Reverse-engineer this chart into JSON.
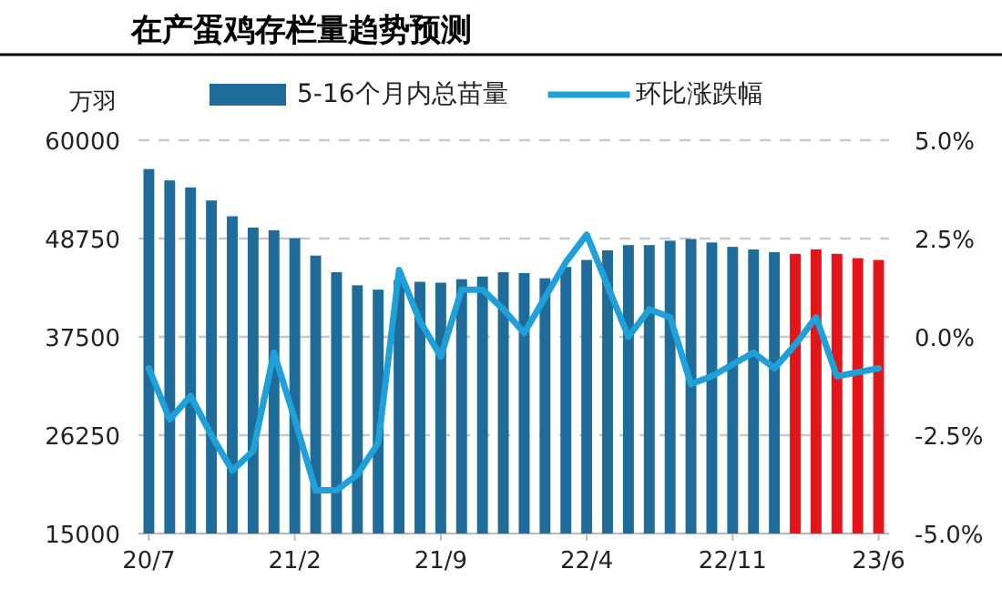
{
  "chart_data": {
    "type": "bar",
    "title": "在产蛋鸡存栏量趋势预测",
    "ylabel": "万羽",
    "categories": [
      "20/7",
      null,
      null,
      null,
      null,
      null,
      null,
      "21/2",
      null,
      null,
      null,
      null,
      null,
      null,
      "21/9",
      null,
      null,
      null,
      null,
      null,
      null,
      "22/4",
      null,
      null,
      null,
      null,
      null,
      null,
      "22/11",
      null,
      null,
      null,
      null,
      null,
      null,
      "23/6"
    ],
    "ylim": [
      15000,
      60000
    ],
    "yticks": [
      15000,
      26250,
      37500,
      48750,
      60000
    ],
    "y2lim": [
      -5,
      5
    ],
    "y2ticks": [
      {
        "value": -5,
        "label": "-5.0%"
      },
      {
        "value": -2.5,
        "label": "-2.5%"
      },
      {
        "value": 0,
        "label": "0.0%"
      },
      {
        "value": 2.5,
        "label": "2.5%"
      },
      {
        "value": 5,
        "label": "5.0%"
      }
    ],
    "grid": "y",
    "legend": "top",
    "series": [
      {
        "name": "5-16个月内总苗量",
        "color": "#1f6b9a",
        "colors": [
          "#1f6b9a",
          "#1f6b9a",
          "#1f6b9a",
          "#1f6b9a",
          "#1f6b9a",
          "#1f6b9a",
          "#1f6b9a",
          "#1f6b9a",
          "#1f6b9a",
          "#1f6b9a",
          "#1f6b9a",
          "#1f6b9a",
          "#1f6b9a",
          "#1f6b9a",
          "#1f6b9a",
          "#1f6b9a",
          "#1f6b9a",
          "#1f6b9a",
          "#1f6b9a",
          "#1f6b9a",
          "#1f6b9a",
          "#1f6b9a",
          "#1f6b9a",
          "#1f6b9a",
          "#1f6b9a",
          "#1f6b9a",
          "#1f6b9a",
          "#1f6b9a",
          "#1f6b9a",
          "#1f6b9a",
          "#1f6b9a",
          "#e3151a",
          "#e3151a",
          "#e3151a",
          "#e3151a",
          "#e3151a"
        ],
        "values": [
          56700,
          55400,
          54600,
          53100,
          51300,
          50000,
          49700,
          48800,
          46800,
          44900,
          43400,
          42900,
          44000,
          43800,
          43700,
          44100,
          44400,
          44900,
          44800,
          44200,
          45500,
          46300,
          47400,
          48000,
          48000,
          48500,
          48700,
          48300,
          47800,
          47500,
          47200,
          47000,
          47500,
          47000,
          46500,
          46300
        ]
      },
      {
        "name": "环比涨跌幅",
        "type": "line",
        "axis": "y2",
        "color": "#20a0d8",
        "values": [
          -0.8,
          -2.1,
          -1.5,
          -2.5,
          -3.4,
          -2.9,
          -0.4,
          -2.1,
          -3.9,
          -3.9,
          -3.5,
          -2.7,
          1.7,
          0.4,
          -0.5,
          1.2,
          1.2,
          0.7,
          0.1,
          1.0,
          1.9,
          2.6,
          1.3,
          0.0,
          0.7,
          0.5,
          -1.2,
          -1.0,
          -0.7,
          -0.4,
          -0.8,
          -0.2,
          0.5,
          -1.0,
          -0.9,
          -0.8
        ]
      }
    ]
  }
}
